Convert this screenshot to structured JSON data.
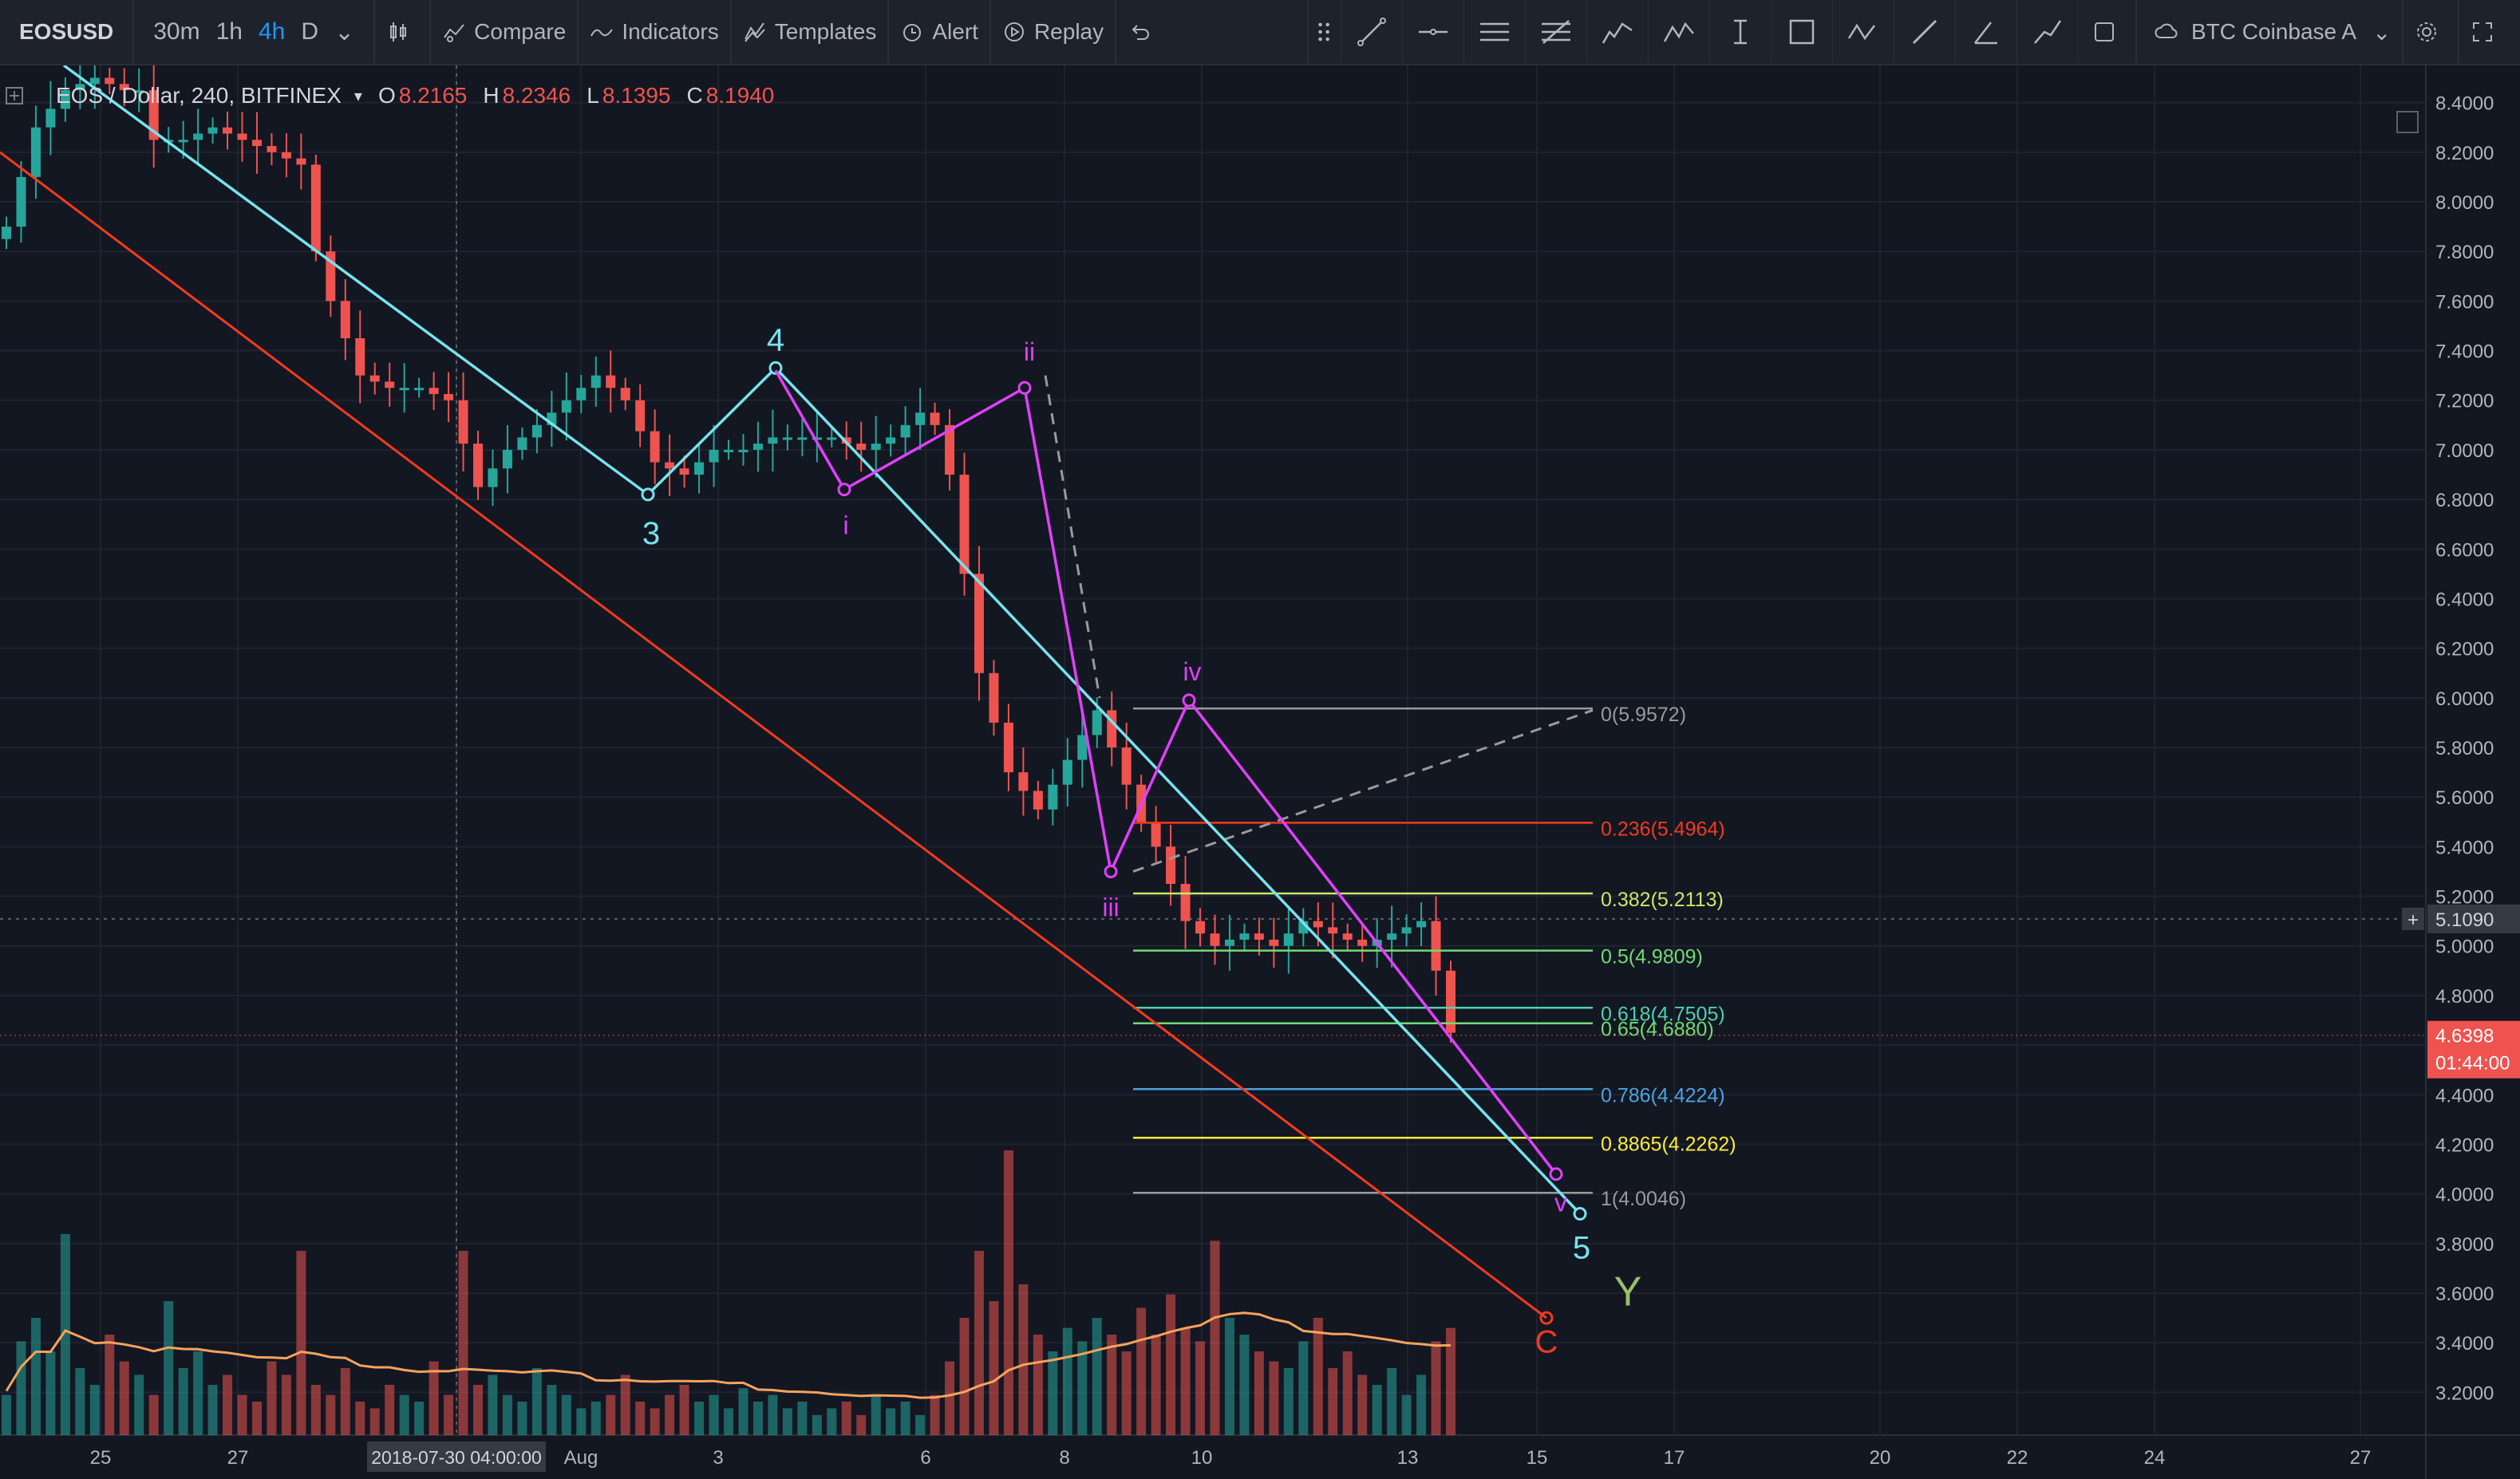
{
  "toolbar": {
    "symbol": "EOSUSD",
    "timeframes": [
      "30m",
      "1h",
      "4h",
      "D"
    ],
    "active_timeframe": "4h",
    "compare": "Compare",
    "indicators": "Indicators",
    "templates": "Templates",
    "alert": "Alert",
    "replay": "Replay",
    "datafeed": "BTC Coinbase A"
  },
  "legend": {
    "symbol": "EOS / Dollar, 240, BITFINEX",
    "o_label": "O",
    "o": "8.2165",
    "h_label": "H",
    "h": "8.2346",
    "l_label": "L",
    "l": "8.1395",
    "c_label": "C",
    "c": "8.1940"
  },
  "colors": {
    "up": "#26a69a",
    "down": "#ef5350",
    "bg": "#131722",
    "cyan": "#76e3ec",
    "magenta": "#e040fb",
    "red_line": "#f23a1f",
    "volume_ma": "#f7a35c"
  },
  "chart_data": {
    "type": "candlestick",
    "symbol": "EOS / Dollar",
    "interval": "240",
    "exchange": "BITFINEX",
    "ylim": [
      3.05,
      8.55
    ],
    "y_ticks": [
      "8.4000",
      "8.2000",
      "8.0000",
      "7.8000",
      "7.6000",
      "7.4000",
      "7.2000",
      "7.0000",
      "6.8000",
      "6.6000",
      "6.4000",
      "6.2000",
      "6.0000",
      "5.8000",
      "5.6000",
      "5.4000",
      "5.2000",
      "5.0000",
      "4.8000",
      "4.6000",
      "4.4000",
      "4.2000",
      "4.0000",
      "3.8000",
      "3.6000",
      "3.4000",
      "3.2000"
    ],
    "x_ticks": [
      "25",
      "27",
      "2018-07-30 04:00:00",
      "Aug",
      "3",
      "6",
      "8",
      "10",
      "13",
      "15",
      "17",
      "20",
      "22",
      "24",
      "27"
    ],
    "price_labels": {
      "crosshair": "5.1090",
      "last": "4.6398",
      "countdown": "01:44:00"
    },
    "price_path": [
      [
        0,
        7.9
      ],
      [
        2,
        8.3
      ],
      [
        4,
        8.45
      ],
      [
        6,
        8.5
      ],
      [
        8,
        8.45
      ],
      [
        9,
        8.45
      ],
      [
        10,
        8.25
      ],
      [
        12,
        8.25
      ],
      [
        14,
        8.3
      ],
      [
        16,
        8.25
      ],
      [
        18,
        8.2
      ],
      [
        20,
        8.15
      ],
      [
        21,
        7.8
      ],
      [
        22,
        7.6
      ],
      [
        24,
        7.3
      ],
      [
        26,
        7.25
      ],
      [
        28,
        7.25
      ],
      [
        30,
        7.2
      ],
      [
        32,
        6.85
      ],
      [
        34,
        7.0
      ],
      [
        36,
        7.1
      ],
      [
        38,
        7.2
      ],
      [
        40,
        7.3
      ],
      [
        42,
        7.2
      ],
      [
        44,
        6.95
      ],
      [
        46,
        6.9
      ],
      [
        48,
        7.0
      ],
      [
        50,
        7.0
      ],
      [
        52,
        7.05
      ],
      [
        54,
        7.05
      ],
      [
        56,
        7.05
      ],
      [
        58,
        7.0
      ],
      [
        60,
        7.05
      ],
      [
        62,
        7.15
      ],
      [
        63,
        7.1
      ],
      [
        64,
        6.9
      ],
      [
        65,
        6.5
      ],
      [
        66,
        6.1
      ],
      [
        67,
        5.9
      ],
      [
        68,
        5.7
      ],
      [
        70,
        5.55
      ],
      [
        72,
        5.75
      ],
      [
        74,
        5.95
      ],
      [
        76,
        5.65
      ],
      [
        77,
        5.5
      ],
      [
        78,
        5.4
      ],
      [
        80,
        5.1
      ],
      [
        82,
        5.0
      ],
      [
        84,
        5.05
      ],
      [
        86,
        5.0
      ],
      [
        88,
        5.1
      ],
      [
        90,
        5.05
      ],
      [
        92,
        5.0
      ],
      [
        94,
        5.05
      ],
      [
        96,
        5.1
      ],
      [
        97,
        4.9
      ],
      [
        98,
        4.65
      ]
    ],
    "volume_heights": [
      0.12,
      0.28,
      0.35,
      0.25,
      0.6,
      0.2,
      0.15,
      0.3,
      0.22,
      0.18,
      0.12,
      0.4,
      0.2,
      0.25,
      0.15,
      0.18,
      0.12,
      0.1,
      0.22,
      0.18,
      0.55,
      0.15,
      0.12,
      0.2,
      0.1,
      0.08,
      0.15,
      0.12,
      0.1,
      0.22,
      0.12,
      0.55,
      0.15,
      0.18,
      0.12,
      0.1,
      0.2,
      0.15,
      0.12,
      0.08,
      0.1,
      0.12,
      0.18,
      0.1,
      0.08,
      0.12,
      0.15,
      0.1,
      0.12,
      0.08,
      0.14,
      0.1,
      0.12,
      0.08,
      0.1,
      0.06,
      0.08,
      0.1,
      0.06,
      0.12,
      0.08,
      0.1,
      0.06,
      0.12,
      0.22,
      0.35,
      0.55,
      0.4,
      0.85,
      0.45,
      0.3,
      0.25,
      0.32,
      0.28,
      0.35,
      0.3,
      0.25,
      0.38,
      0.3,
      0.42,
      0.32,
      0.28,
      0.58,
      0.35,
      0.3,
      0.25,
      0.22,
      0.2,
      0.28,
      0.35,
      0.2,
      0.25,
      0.18,
      0.15,
      0.2,
      0.12,
      0.18,
      0.28,
      0.32
    ],
    "fib_levels": [
      {
        "level": "0",
        "price": 5.9572,
        "label": "0(5.9572)",
        "color": "#9a9a9a"
      },
      {
        "level": "0.236",
        "price": 5.4964,
        "label": "0.236(5.4964)",
        "color": "#f23a1f"
      },
      {
        "level": "0.382",
        "price": 5.2113,
        "label": "0.382(5.2113)",
        "color": "#c6e86b"
      },
      {
        "level": "0.5",
        "price": 4.9809,
        "label": "0.5(4.9809)",
        "color": "#6fdc6f"
      },
      {
        "level": "0.618",
        "price": 4.7505,
        "label": "0.618(4.7505)",
        "color": "#4dd0b0"
      },
      {
        "level": "0.65",
        "price": 4.688,
        "label": "0.65(4.6880)",
        "color": "#6fdc6f"
      },
      {
        "level": "0.786",
        "price": 4.4224,
        "label": "0.786(4.4224)",
        "color": "#4aa3df"
      },
      {
        "level": "0.8865",
        "price": 4.2262,
        "label": "0.8865(4.2262)",
        "color": "#ffeb3b"
      },
      {
        "level": "1",
        "price": 4.0046,
        "label": "1(4.0046)",
        "color": "#9a9a9a"
      }
    ],
    "wave_labels": [
      {
        "text": "3",
        "color": "#76e3ec"
      },
      {
        "text": "4",
        "color": "#76e3ec"
      },
      {
        "text": "5",
        "color": "#76e3ec"
      },
      {
        "text": "i",
        "color": "#e040fb"
      },
      {
        "text": "ii",
        "color": "#e040fb"
      },
      {
        "text": "iii",
        "color": "#e040fb"
      },
      {
        "text": "iv",
        "color": "#e040fb"
      },
      {
        "text": "v",
        "color": "#e040fb"
      },
      {
        "text": "C",
        "color": "#f23a1f"
      },
      {
        "text": "Y",
        "color": "#9bbf6a"
      }
    ]
  }
}
